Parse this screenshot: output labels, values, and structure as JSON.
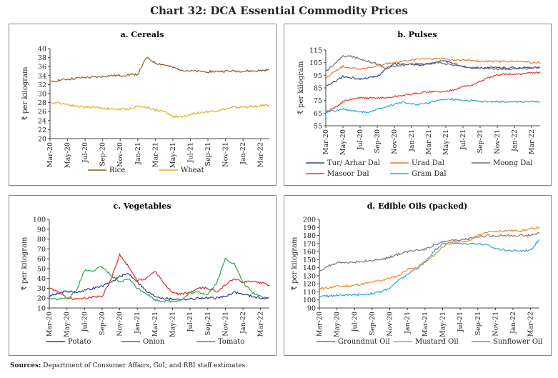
{
  "title": "Chart 32: DCA Essential Commodity Prices",
  "source_label": "Sources:",
  "source_text": "Department of Consumer Affairs, GoI; and RBI staff estimates.",
  "colors": {
    "rice": "#8b5a2b",
    "wheat": "#e0b020",
    "tur": "#2e4a9a",
    "urad": "#ee7a2a",
    "moong": "#707070",
    "masoor": "#e23a2a",
    "gram": "#2aa6dd",
    "potato": "#2e3a8c",
    "onion": "#e22a2a",
    "tomato": "#2aa64a",
    "groundnut": "#777777",
    "mustard": "#ef8a2a",
    "sunflower": "#2aa6dd"
  },
  "chart_data": [
    {
      "id": "a",
      "type": "line",
      "title": "a. Cereals",
      "ylabel": "₹ per kilogram",
      "ylim": [
        20,
        40
      ],
      "yticks": [
        20,
        22,
        24,
        26,
        28,
        30,
        32,
        34,
        36,
        38,
        40
      ],
      "xticks": [
        "Mar-20",
        "May-20",
        "Jul-20",
        "Sep-20",
        "Nov-20",
        "Jan-21",
        "Mar-21",
        "May-21",
        "Jul-21",
        "Sep-21",
        "Nov-21",
        "Jan-22",
        "Mar-22"
      ],
      "x_months": [
        0,
        1,
        2,
        3,
        4,
        5,
        6,
        7,
        8,
        9,
        10,
        11,
        12,
        13,
        14,
        15,
        16,
        17,
        18,
        19,
        20,
        21,
        22,
        23,
        24,
        25
      ],
      "series": [
        {
          "name": "Rice",
          "color_key": "rice",
          "values": [
            32.5,
            33.0,
            33.2,
            33.4,
            33.6,
            33.6,
            33.8,
            34.0,
            34.0,
            34.2,
            34.3,
            38.0,
            36.8,
            36.4,
            35.8,
            35.3,
            35.0,
            34.9,
            34.9,
            34.9,
            35.0,
            35.0,
            35.0,
            35.0,
            35.1,
            35.3
          ]
        },
        {
          "name": "Wheat",
          "color_key": "wheat",
          "values": [
            28.0,
            28.0,
            27.6,
            27.2,
            27.0,
            27.0,
            26.8,
            26.6,
            26.5,
            26.6,
            27.2,
            27.0,
            26.4,
            26.0,
            25.0,
            24.8,
            25.4,
            25.8,
            26.0,
            26.2,
            26.6,
            26.9,
            27.0,
            27.1,
            27.3,
            27.5
          ]
        }
      ]
    },
    {
      "id": "b",
      "type": "line",
      "title": "b. Pulses",
      "ylabel": "₹ per kilogram",
      "ylim": [
        55,
        115
      ],
      "yticks": [
        55,
        65,
        75,
        85,
        95,
        105,
        115
      ],
      "xticks": [
        "Mar-20",
        "May-20",
        "Jul-20",
        "Sep-20",
        "Nov-20",
        "Jan-21",
        "Mar-21",
        "May-21",
        "Jul-21",
        "Sep-21",
        "Nov-21",
        "Jan-22",
        "Mar-22"
      ],
      "x_months": [
        0,
        1,
        2,
        3,
        4,
        5,
        6,
        7,
        8,
        9,
        10,
        11,
        12,
        13,
        14,
        15,
        16,
        17,
        18,
        19,
        20,
        21,
        22,
        23,
        24,
        25
      ],
      "series": [
        {
          "name": "Tur/ Arhar Dal",
          "color_key": "tur",
          "values": [
            86,
            90,
            94,
            93,
            92,
            93,
            94,
            100,
            104,
            104,
            104,
            103,
            104,
            106,
            106,
            104,
            102,
            101,
            101,
            101,
            101,
            101,
            101,
            101,
            101,
            101
          ]
        },
        {
          "name": "Urad Dal",
          "color_key": "urad",
          "values": [
            92,
            98,
            102,
            101,
            100,
            101,
            102,
            104,
            105,
            106,
            107,
            108,
            108,
            108,
            108,
            107,
            107,
            107,
            106,
            106,
            106,
            106,
            106,
            106,
            105,
            105
          ]
        },
        {
          "name": "Moong Dal",
          "color_key": "moong",
          "values": [
            98,
            104,
            110,
            110,
            108,
            106,
            104,
            100,
            102,
            103,
            104,
            104,
            104,
            105,
            104,
            103,
            102,
            101,
            101,
            100,
            100,
            100,
            100,
            100,
            101,
            101
          ]
        },
        {
          "name": "Masoor Dal",
          "color_key": "masoor",
          "values": [
            66,
            69,
            74,
            76,
            77,
            77,
            77,
            77,
            78,
            79,
            80,
            81,
            82,
            82,
            82,
            84,
            86,
            87,
            90,
            93,
            95,
            96,
            96,
            96,
            97,
            97
          ]
        },
        {
          "name": "Gram Dal",
          "color_key": "gram",
          "values": [
            66,
            67,
            68,
            67,
            66,
            66,
            68,
            70,
            72,
            74,
            72,
            72,
            73,
            75,
            76,
            76,
            75,
            75,
            74,
            74,
            74,
            74,
            74,
            74,
            74,
            74
          ]
        }
      ]
    },
    {
      "id": "c",
      "type": "line",
      "title": "c. Vegetables",
      "ylabel": "₹ per kilogram",
      "ylim": [
        10,
        100
      ],
      "yticks": [
        10,
        20,
        30,
        40,
        50,
        60,
        70,
        80,
        90,
        100
      ],
      "xticks": [
        "Mar-20",
        "May-20",
        "Jul-20",
        "Sep-20",
        "Nov-20",
        "Jan-21",
        "Mar-21",
        "May-21",
        "Jul-21",
        "Sep-21",
        "Nov-21",
        "Jan-22",
        "Mar-22"
      ],
      "x_months": [
        0,
        1,
        2,
        3,
        4,
        5,
        6,
        7,
        8,
        9,
        10,
        11,
        12,
        13,
        14,
        15,
        16,
        17,
        18,
        19,
        20,
        21,
        22,
        23,
        24,
        25
      ],
      "series": [
        {
          "name": "Potato",
          "color_key": "potato",
          "values": [
            22,
            25,
            27,
            26,
            28,
            30,
            32,
            36,
            42,
            45,
            37,
            27,
            22,
            20,
            19,
            19,
            19,
            20,
            20,
            20,
            22,
            26,
            24,
            22,
            20,
            20
          ]
        },
        {
          "name": "Onion",
          "color_key": "onion",
          "values": [
            30,
            27,
            20,
            19,
            20,
            21,
            22,
            39,
            64,
            52,
            38,
            40,
            48,
            35,
            25,
            24,
            26,
            30,
            30,
            26,
            34,
            40,
            36,
            37,
            36,
            33
          ]
        },
        {
          "name": "Tomato",
          "color_key": "tomato",
          "values": [
            19,
            19,
            20,
            26,
            48,
            48,
            52,
            43,
            36,
            40,
            30,
            25,
            18,
            17,
            17,
            18,
            25,
            26,
            24,
            35,
            60,
            55,
            36,
            26,
            22,
            20
          ]
        }
      ]
    },
    {
      "id": "d",
      "type": "line",
      "title": "d. Edible Oils (packed)",
      "ylabel": "₹ per kilogram",
      "ylim": [
        90,
        200
      ],
      "yticks": [
        90,
        100,
        110,
        120,
        130,
        140,
        150,
        160,
        170,
        180,
        190,
        200
      ],
      "xticks": [
        "Mar-20",
        "May-20",
        "Jul-20",
        "Sep-20",
        "Nov-20",
        "Jan-21",
        "Mar-21",
        "May-21",
        "Jul-21",
        "Sep-21",
        "Nov-21",
        "Jan-22",
        "Mar-22"
      ],
      "x_months": [
        0,
        1,
        2,
        3,
        4,
        5,
        6,
        7,
        8,
        9,
        10,
        11,
        12,
        13,
        14,
        15,
        16,
        17,
        18,
        19,
        20,
        21,
        22,
        23,
        24,
        25
      ],
      "series": [
        {
          "name": "Groundnut Oil",
          "color_key": "groundnut",
          "values": [
            136,
            142,
            146,
            146,
            147,
            148,
            149,
            150,
            153,
            157,
            160,
            162,
            163,
            168,
            172,
            174,
            174,
            176,
            178,
            180,
            180,
            180,
            180,
            180,
            180,
            183
          ]
        },
        {
          "name": "Mustard Oil",
          "color_key": "mustard",
          "values": [
            114,
            115,
            117,
            117,
            118,
            120,
            122,
            124,
            127,
            130,
            138,
            140,
            146,
            155,
            166,
            172,
            172,
            174,
            180,
            184,
            185,
            186,
            186,
            186,
            188,
            190
          ]
        },
        {
          "name": "Sunflower Oil",
          "color_key": "sunflower",
          "values": [
            104,
            105,
            106,
            106,
            106,
            107,
            108,
            110,
            115,
            124,
            132,
            138,
            148,
            160,
            170,
            170,
            170,
            170,
            170,
            168,
            164,
            162,
            161,
            161,
            162,
            175
          ]
        }
      ]
    }
  ]
}
